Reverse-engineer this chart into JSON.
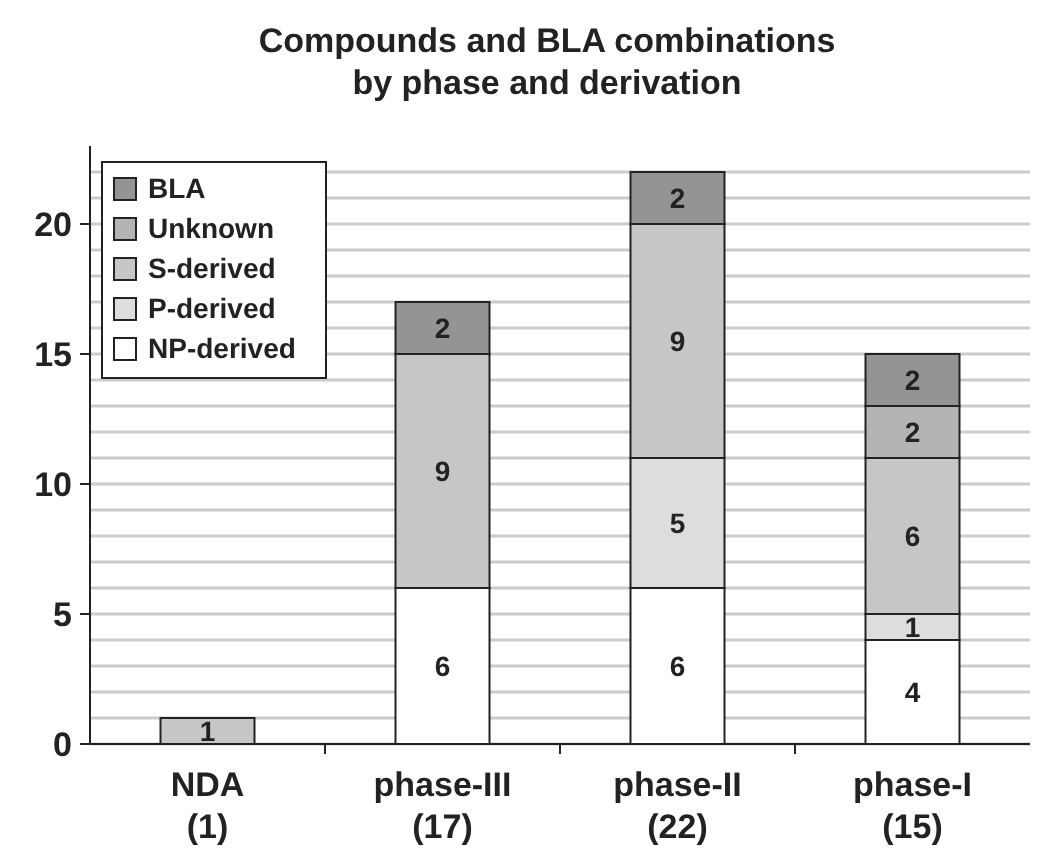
{
  "chart_data": {
    "type": "bar",
    "stacked": true,
    "title": "Compounds and BLA combinations\nby phase and derivation",
    "categories": [
      "NDA\n(1)",
      "phase-III\n(17)",
      "phase-II\n(22)",
      "phase-I\n(15)"
    ],
    "series": [
      {
        "name": "NP-derived",
        "color": "#ffffff",
        "values": [
          null,
          6,
          6,
          4
        ]
      },
      {
        "name": "P-derived",
        "color": "#dcdddc",
        "values": [
          null,
          null,
          5,
          1
        ]
      },
      {
        "name": "S-derived",
        "color": "#c5c6c7",
        "values": [
          1,
          9,
          9,
          6
        ]
      },
      {
        "name": "Unknown",
        "color": "#b3b4b5",
        "values": [
          null,
          null,
          null,
          2
        ]
      },
      {
        "name": "BLA",
        "color": "#939496",
        "values": [
          null,
          2,
          2,
          2
        ]
      }
    ],
    "ylim": [
      0,
      23
    ],
    "yticks": [
      0,
      {
        "value": 1,
        "label": null
      },
      {
        "value": 2,
        "label": null
      },
      {
        "value": 3,
        "label": null
      },
      {
        "value": 4,
        "label": null
      },
      5,
      {
        "value": 6,
        "label": null
      },
      {
        "value": 7,
        "label": null
      },
      {
        "value": 8,
        "label": null
      },
      {
        "value": 9,
        "label": null
      },
      10,
      {
        "value": 11,
        "label": null
      },
      {
        "value": 12,
        "label": null
      },
      {
        "value": 13,
        "label": null
      },
      {
        "value": 14,
        "label": null
      },
      15,
      {
        "value": 16,
        "label": null
      },
      {
        "value": 17,
        "label": null
      },
      {
        "value": 18,
        "label": null
      },
      {
        "value": 19,
        "label": null
      },
      20,
      {
        "value": 21,
        "label": null
      },
      {
        "value": 22,
        "label": null
      }
    ],
    "grid": true,
    "legend": "top left",
    "data_labels": true
  }
}
